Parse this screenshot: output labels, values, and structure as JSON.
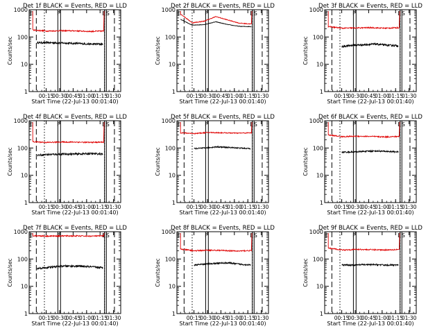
{
  "figure": {
    "y_axis_label": "Counts/sec",
    "x_axis_label": "Start Time (22-Jul-13 00:01:40)",
    "legend_text": "BLACK = Events, RED = LLD",
    "colors": {
      "events": "#000000",
      "lld": "#e00000",
      "axes": "#000000"
    }
  },
  "chart_data": [
    {
      "type": "line",
      "title": "Det 1f BLACK = Events, RED = LLD",
      "marker_labels": [
        "E",
        "F",
        "E",
        "S"
      ],
      "xlabel": "Start Time (22-Jul-13 00:01:40)",
      "ylabel": "Counts/sec",
      "yscale": "log",
      "ylim": [
        1,
        1000
      ],
      "yticks": [
        "1",
        "10",
        "100",
        "1000"
      ],
      "xticks": [
        "00:15",
        "00:30",
        "00:45",
        "01:00",
        "01:15",
        "01:30"
      ],
      "series": [
        {
          "name": "Events",
          "color": "#000000",
          "start": "00:05",
          "end": "01:18",
          "level": [
            62,
            62,
            60,
            58,
            55,
            55
          ],
          "noise": 0.08
        },
        {
          "name": "LLD",
          "color": "#e00000",
          "start": "00:00",
          "end": "01:19",
          "level": [
            180,
            165,
            170,
            168,
            160,
            165
          ],
          "noise": 0.05
        }
      ]
    },
    {
      "type": "line",
      "title": "Det 2f BLACK = Events, RED = LLD",
      "marker_labels": [
        "E",
        "F",
        "E",
        "S"
      ],
      "xlabel": "Start Time (22-Jul-13 00:01:40)",
      "ylabel": "Counts/sec",
      "yscale": "log",
      "ylim": [
        1,
        1000
      ],
      "yticks": [
        "1",
        "10",
        "100",
        "1000"
      ],
      "xticks": [
        "00:15",
        "00:30",
        "00:45",
        "01:00",
        "01:15",
        "01:30"
      ],
      "series": [
        {
          "name": "Events",
          "color": "#000000",
          "start": "00:00",
          "end": "01:19",
          "level": [
            450,
            270,
            285,
            360,
            285,
            245,
            240
          ],
          "noise": 0.02
        },
        {
          "name": "LLD",
          "color": "#e00000",
          "start": "00:00",
          "end": "01:19",
          "level": [
            700,
            330,
            380,
            560,
            420,
            320,
            300
          ],
          "noise": 0.03
        }
      ]
    },
    {
      "type": "line",
      "title": "Det 3f BLACK = Events, RED = LLD",
      "marker_labels": [
        "E",
        "F",
        "E",
        "S"
      ],
      "xlabel": "Start Time (22-Jul-13 00:01:40)",
      "ylabel": "Counts/sec",
      "yscale": "log",
      "ylim": [
        1,
        1000
      ],
      "yticks": [
        "1",
        "10",
        "100",
        "1000"
      ],
      "xticks": [
        "00:15",
        "00:30",
        "00:45",
        "01:00",
        "01:15",
        "01:30"
      ],
      "series": [
        {
          "name": "Events",
          "color": "#000000",
          "start": "00:15",
          "end": "01:18",
          "level": [
            45,
            50,
            52,
            55,
            50,
            48
          ],
          "noise": 0.08
        },
        {
          "name": "LLD",
          "color": "#e00000",
          "start": "00:00",
          "end": "01:19",
          "level": [
            240,
            210,
            215,
            220,
            210,
            220
          ],
          "noise": 0.05
        }
      ]
    },
    {
      "type": "line",
      "title": "Det 4f BLACK = Events, RED = LLD",
      "marker_labels": [
        "E",
        "F",
        "E",
        "S"
      ],
      "xlabel": "Start Time (22-Jul-13 00:01:40)",
      "ylabel": "Counts/sec",
      "yscale": "log",
      "ylim": [
        1,
        1000
      ],
      "yticks": [
        "1",
        "10",
        "100",
        "1000"
      ],
      "xticks": [
        "00:15",
        "00:30",
        "00:45",
        "01:00",
        "01:15",
        "01:30"
      ],
      "series": [
        {
          "name": "Events",
          "color": "#000000",
          "start": "00:05",
          "end": "01:18",
          "level": [
            55,
            58,
            60,
            60,
            62,
            60
          ],
          "noise": 0.08
        },
        {
          "name": "LLD",
          "color": "#e00000",
          "start": "00:00",
          "end": "01:19",
          "level": [
            170,
            160,
            165,
            165,
            160,
            165
          ],
          "noise": 0.05
        }
      ]
    },
    {
      "type": "line",
      "title": "Det 5f BLACK = Events, RED = LLD",
      "marker_labels": [
        "E",
        "F",
        "E",
        "S"
      ],
      "xlabel": "Start Time (22-Jul-13 00:01:40)",
      "ylabel": "Counts/sec",
      "yscale": "log",
      "ylim": [
        1,
        1000
      ],
      "yticks": [
        "1",
        "10",
        "100",
        "1000"
      ],
      "xticks": [
        "00:15",
        "00:30",
        "00:45",
        "01:00",
        "01:15",
        "01:30"
      ],
      "series": [
        {
          "name": "Events",
          "color": "#000000",
          "start": "00:15",
          "end": "01:18",
          "level": [
            95,
            100,
            110,
            105,
            100,
            95
          ],
          "noise": 0.05
        },
        {
          "name": "LLD",
          "color": "#e00000",
          "start": "00:00",
          "end": "01:19",
          "level": [
            360,
            340,
            370,
            360,
            350,
            360
          ],
          "noise": 0.04
        }
      ]
    },
    {
      "type": "line",
      "title": "Det 6f BLACK = Events, RED = LLD",
      "marker_labels": [
        "E",
        "F",
        "E",
        "S"
      ],
      "xlabel": "Start Time (22-Jul-13 00:01:40)",
      "ylabel": "Counts/sec",
      "yscale": "log",
      "ylim": [
        1,
        1000
      ],
      "yticks": [
        "1",
        "10",
        "100",
        "1000"
      ],
      "xticks": [
        "00:15",
        "00:30",
        "00:45",
        "01:00",
        "01:15",
        "01:30"
      ],
      "series": [
        {
          "name": "Events",
          "color": "#000000",
          "start": "00:15",
          "end": "01:18",
          "level": [
            70,
            72,
            75,
            78,
            75,
            72
          ],
          "noise": 0.06
        },
        {
          "name": "LLD",
          "color": "#e00000",
          "start": "00:00",
          "end": "01:19",
          "level": [
            300,
            260,
            270,
            265,
            255,
            265
          ],
          "noise": 0.05
        }
      ]
    },
    {
      "type": "line",
      "title": "Det 7f BLACK = Events, RED = LLD",
      "marker_labels": [
        "E",
        "F",
        "E",
        "S"
      ],
      "xlabel": "Start Time (22-Jul-13 00:01:40)",
      "ylabel": "Counts/sec",
      "yscale": "log",
      "ylim": [
        1,
        1000
      ],
      "yticks": [
        "1",
        "10",
        "100",
        "1000"
      ],
      "xticks": [
        "00:15",
        "00:30",
        "00:45",
        "01:00",
        "01:15",
        "01:30"
      ],
      "series": [
        {
          "name": "Events",
          "color": "#000000",
          "start": "00:05",
          "end": "01:18",
          "level": [
            45,
            50,
            55,
            55,
            52,
            48
          ],
          "noise": 0.08
        },
        {
          "name": "LLD",
          "color": "#e00000",
          "start": "00:00",
          "end": "01:19",
          "level": [
            720,
            690,
            700,
            700,
            690,
            700
          ],
          "noise": 0.05
        }
      ]
    },
    {
      "type": "line",
      "title": "Det 8f BLACK = Events, RED = LLD",
      "marker_labels": [
        "E",
        "F",
        "E",
        "S"
      ],
      "xlabel": "Start Time (22-Jul-13 00:01:40)",
      "ylabel": "Counts/sec",
      "yscale": "log",
      "ylim": [
        1,
        1000
      ],
      "yticks": [
        "1",
        "10",
        "100",
        "1000"
      ],
      "xticks": [
        "00:15",
        "00:30",
        "00:45",
        "01:00",
        "01:15",
        "01:30"
      ],
      "series": [
        {
          "name": "Events",
          "color": "#000000",
          "start": "00:15",
          "end": "01:18",
          "level": [
            60,
            65,
            70,
            72,
            65,
            60
          ],
          "noise": 0.06
        },
        {
          "name": "LLD",
          "color": "#e00000",
          "start": "00:00",
          "end": "01:19",
          "level": [
            230,
            200,
            210,
            205,
            195,
            205
          ],
          "noise": 0.05
        }
      ]
    },
    {
      "type": "line",
      "title": "Det 9f BLACK = Events, RED = LLD",
      "marker_labels": [
        "E",
        "F",
        "E",
        "S"
      ],
      "xlabel": "Start Time (22-Jul-13 00:01:40)",
      "ylabel": "Counts/sec",
      "yscale": "log",
      "ylim": [
        1,
        1000
      ],
      "yticks": [
        "1",
        "10",
        "100",
        "1000"
      ],
      "xticks": [
        "00:15",
        "00:30",
        "00:45",
        "01:00",
        "01:15",
        "01:30"
      ],
      "series": [
        {
          "name": "Events",
          "color": "#000000",
          "start": "00:15",
          "end": "01:18",
          "level": [
            60,
            60,
            62,
            62,
            60,
            60
          ],
          "noise": 0.06
        },
        {
          "name": "LLD",
          "color": "#e00000",
          "start": "00:00",
          "end": "01:19",
          "level": [
            250,
            215,
            225,
            220,
            215,
            225
          ],
          "noise": 0.05
        }
      ]
    }
  ]
}
